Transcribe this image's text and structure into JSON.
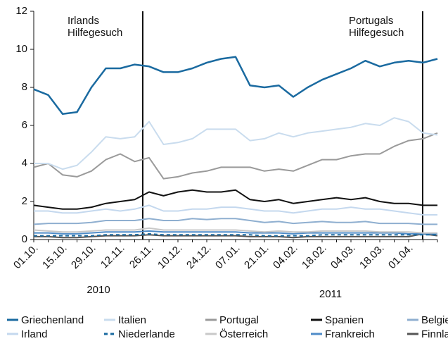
{
  "chart_data": {
    "type": "line",
    "categories": [
      "01.10.",
      null,
      "15.10.",
      null,
      "29.10.",
      null,
      "12.11.",
      null,
      "26.11.",
      null,
      "10.12.",
      null,
      "24.12.",
      null,
      "07.01.",
      null,
      "21.01.",
      null,
      "04.02.",
      null,
      "18.02.",
      null,
      "04.03.",
      null,
      "18.03.",
      null,
      "01.04.",
      null,
      null
    ],
    "ylim": [
      0,
      12
    ],
    "yticks": [
      0,
      2,
      4,
      6,
      8,
      10,
      12
    ],
    "year_labels": [
      "2010",
      "2011"
    ],
    "annotations": [
      {
        "text": [
          "Irlands",
          "Hilfegesuch"
        ]
      },
      {
        "text": [
          "Portugals",
          "Hilfegesuch"
        ]
      }
    ],
    "series": [
      {
        "name": "Griechenland",
        "color": "#1a6aa0",
        "values": [
          7.9,
          7.6,
          6.6,
          6.7,
          8.0,
          9.0,
          9.0,
          9.2,
          9.1,
          8.8,
          8.8,
          9.0,
          9.3,
          9.5,
          9.6,
          8.1,
          8.0,
          8.1,
          7.5,
          8.0,
          8.4,
          8.7,
          9.0,
          9.4,
          9.1,
          9.3,
          9.4,
          9.3,
          9.5
        ]
      },
      {
        "name": "Italien",
        "color": "#c9dcee",
        "values": [
          4.0,
          4.0,
          3.7,
          3.9,
          4.6,
          5.4,
          5.3,
          5.4,
          6.2,
          5.0,
          5.1,
          5.3,
          5.8,
          5.8,
          5.8,
          5.2,
          5.3,
          5.6,
          5.4,
          5.6,
          5.7,
          5.8,
          5.9,
          6.1,
          6.0,
          6.4,
          6.2,
          5.6,
          5.5
        ]
      },
      {
        "name": "Portugal",
        "color": "#9a9a9a",
        "values": [
          3.8,
          4.0,
          3.4,
          3.3,
          3.6,
          4.2,
          4.5,
          4.1,
          4.3,
          3.2,
          3.3,
          3.5,
          3.6,
          3.8,
          3.8,
          3.8,
          3.6,
          3.7,
          3.6,
          3.9,
          4.2,
          4.2,
          4.4,
          4.5,
          4.5,
          4.9,
          5.2,
          5.3,
          5.6
        ]
      },
      {
        "name": "Spanien",
        "color": "#111111",
        "values": [
          1.8,
          1.7,
          1.6,
          1.6,
          1.7,
          1.9,
          2.0,
          2.1,
          2.5,
          2.3,
          2.5,
          2.6,
          2.5,
          2.5,
          2.6,
          2.1,
          2.0,
          2.1,
          1.9,
          2.0,
          2.1,
          2.2,
          2.1,
          2.2,
          2.0,
          1.9,
          1.9,
          1.8,
          1.8
        ]
      },
      {
        "name": "Belgien",
        "color": "#8fafd0",
        "values": [
          0.8,
          0.85,
          0.85,
          0.85,
          0.9,
          1.0,
          1.0,
          1.0,
          1.1,
          1.0,
          1.0,
          1.1,
          1.05,
          1.1,
          1.1,
          1.0,
          0.9,
          0.95,
          0.85,
          0.9,
          0.95,
          0.9,
          0.9,
          0.95,
          0.85,
          0.85,
          0.85,
          0.8,
          0.8
        ]
      },
      {
        "name": "Irland",
        "color": "#c4d8ee",
        "values": [
          1.5,
          1.5,
          1.4,
          1.4,
          1.5,
          1.6,
          1.5,
          1.6,
          1.8,
          1.5,
          1.5,
          1.6,
          1.6,
          1.7,
          1.7,
          1.6,
          1.5,
          1.5,
          1.4,
          1.5,
          1.6,
          1.6,
          1.7,
          1.6,
          1.6,
          1.5,
          1.4,
          1.3,
          1.3
        ]
      },
      {
        "name": "Niederlande",
        "color": "#1a6aa0",
        "dashed": true,
        "values": [
          0.2,
          0.2,
          0.2,
          0.2,
          0.2,
          0.25,
          0.25,
          0.25,
          0.3,
          0.25,
          0.25,
          0.25,
          0.25,
          0.25,
          0.25,
          0.25,
          0.2,
          0.2,
          0.2,
          0.2,
          0.25,
          0.25,
          0.25,
          0.25,
          0.25,
          0.25,
          0.25,
          0.25,
          0.25
        ]
      },
      {
        "name": "Österreich",
        "color": "#c8c8c8",
        "values": [
          0.5,
          0.45,
          0.4,
          0.4,
          0.45,
          0.5,
          0.5,
          0.5,
          0.6,
          0.5,
          0.5,
          0.5,
          0.5,
          0.5,
          0.5,
          0.45,
          0.4,
          0.45,
          0.4,
          0.4,
          0.45,
          0.45,
          0.45,
          0.45,
          0.4,
          0.4,
          0.4,
          0.35,
          0.35
        ]
      },
      {
        "name": "Frankreich",
        "color": "#4f8cc8",
        "values": [
          0.35,
          0.35,
          0.3,
          0.3,
          0.35,
          0.4,
          0.4,
          0.4,
          0.45,
          0.4,
          0.4,
          0.4,
          0.4,
          0.4,
          0.4,
          0.35,
          0.35,
          0.35,
          0.3,
          0.35,
          0.35,
          0.35,
          0.35,
          0.35,
          0.35,
          0.35,
          0.3,
          0.3,
          0.3
        ]
      },
      {
        "name": "Finnland",
        "color": "#555555",
        "values": [
          0.15,
          0.15,
          0.1,
          0.1,
          0.15,
          0.2,
          0.2,
          0.2,
          0.25,
          0.2,
          0.2,
          0.2,
          0.2,
          0.2,
          0.2,
          0.15,
          0.15,
          0.15,
          0.1,
          0.15,
          0.15,
          0.15,
          0.15,
          0.15,
          0.15,
          0.15,
          0.15,
          0.3,
          0.2
        ]
      }
    ]
  }
}
